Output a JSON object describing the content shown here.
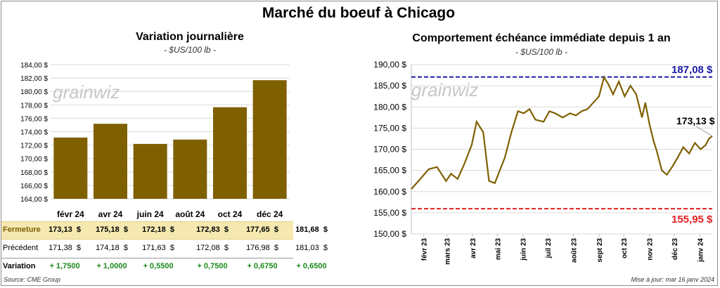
{
  "title": "Marché du boeuf à Chicago",
  "left_panel": {
    "title": "Variation  journalière",
    "unit": "- $US/100 lb -",
    "watermark": "grainwiz",
    "table": {
      "rows": [
        {
          "label": "Fermeture",
          "values": [
            "173,13  $",
            "175,18  $",
            "172,18  $",
            "172,83  $",
            "177,65  $",
            "181,68  $"
          ]
        },
        {
          "label": "Précédent",
          "values": [
            "171,38  $",
            "174,18  $",
            "171,63  $",
            "172,08  $",
            "176,98  $",
            "181,03  $"
          ]
        },
        {
          "label": "Variation",
          "values": [
            "+ 1,7500",
            "+ 1,0000",
            "+ 0,5500",
            "+ 0,7500",
            "+ 0,6750",
            "+ 0,6500"
          ]
        }
      ]
    }
  },
  "right_panel": {
    "title": "Comportement  échéance immédiate depuis 1 an",
    "unit": "- $US/100 lb -",
    "watermark": "grainwiz",
    "high_label": "187,08 $",
    "low_label": "155,95 $",
    "last_label": "173,13 $"
  },
  "footer": {
    "source": "Source: CME Group",
    "update": "Mise à jour: mar 16 janv 2024"
  },
  "colors": {
    "bar": "#7f6000",
    "line": "#7f6000",
    "high": "#1a1aa6",
    "low": "#e02020",
    "close_row": "#f5e8b0",
    "positive": "#1a8a1a"
  },
  "chart_data": [
    {
      "type": "bar",
      "title": "Variation  journalière",
      "categories": [
        "févr 24",
        "avr 24",
        "juin 24",
        "août 24",
        "oct 24",
        "déc 24"
      ],
      "values": [
        173.13,
        175.18,
        172.18,
        172.83,
        177.65,
        181.68
      ],
      "yticks": [
        "164,00 $",
        "166,00 $",
        "168,00 $",
        "170,00 $",
        "172,00 $",
        "174,00 $",
        "176,00 $",
        "178,00 $",
        "180,00 $",
        "182,00 $",
        "184,00 $"
      ],
      "ylim": [
        164,
        184
      ],
      "grid": true
    },
    {
      "type": "line",
      "title": "Comportement  échéance immédiate depuis 1 an",
      "xticks": [
        "févr 23",
        "mars 23",
        "avr 23",
        "mai 23",
        "juin 23",
        "juil 23",
        "août 23",
        "sept 23",
        "oct 23",
        "nov 23",
        "déc 23",
        "janv 24"
      ],
      "yticks": [
        "150,00 $",
        "155,00 $",
        "160,00 $",
        "165,00 $",
        "170,00 $",
        "175,00 $",
        "180,00 $",
        "185,00 $",
        "190,00 $"
      ],
      "ylim": [
        150,
        190
      ],
      "x": [
        "2023-01-17",
        "2023-01-27",
        "2023-02-07",
        "2023-02-17",
        "2023-02-28",
        "2023-03-06",
        "2023-03-14",
        "2023-03-22",
        "2023-03-31",
        "2023-04-06",
        "2023-04-14",
        "2023-04-21",
        "2023-04-28",
        "2023-05-03",
        "2023-05-10",
        "2023-05-18",
        "2023-05-26",
        "2023-06-02",
        "2023-06-09",
        "2023-06-16",
        "2023-06-26",
        "2023-07-03",
        "2023-07-10",
        "2023-07-19",
        "2023-07-28",
        "2023-08-04",
        "2023-08-11",
        "2023-08-18",
        "2023-08-25",
        "2023-09-01",
        "2023-09-07",
        "2023-09-12",
        "2023-09-18",
        "2023-09-25",
        "2023-10-02",
        "2023-10-09",
        "2023-10-16",
        "2023-10-23",
        "2023-10-27",
        "2023-11-01",
        "2023-11-06",
        "2023-11-10",
        "2023-11-16",
        "2023-11-22",
        "2023-11-29",
        "2023-12-05",
        "2023-12-12",
        "2023-12-19",
        "2023-12-26",
        "2024-01-02",
        "2024-01-08",
        "2024-01-12",
        "2024-01-16"
      ],
      "series": [
        {
          "values": [
            160.6,
            162.8,
            165.3,
            165.8,
            162.5,
            164.2,
            163.0,
            166.5,
            171.0,
            176.5,
            174.0,
            162.5,
            162.0,
            164.5,
            168.0,
            174.0,
            179.0,
            178.5,
            179.5,
            177.0,
            176.5,
            179.0,
            178.5,
            177.5,
            178.5,
            178.0,
            179.0,
            179.5,
            181.0,
            182.5,
            187.0,
            185.5,
            183.0,
            186.0,
            182.5,
            185.0,
            183.0,
            177.5,
            181.0,
            176.0,
            172.0,
            169.5,
            165.0,
            164.0,
            166.0,
            168.0,
            170.5,
            169.0,
            171.5,
            170.0,
            171.0,
            172.5,
            173.13
          ]
        }
      ],
      "reference_lines": [
        {
          "label": "187,08 $",
          "value": 187.08
        },
        {
          "label": "155,95 $",
          "value": 155.95
        }
      ],
      "grid": true
    }
  ]
}
